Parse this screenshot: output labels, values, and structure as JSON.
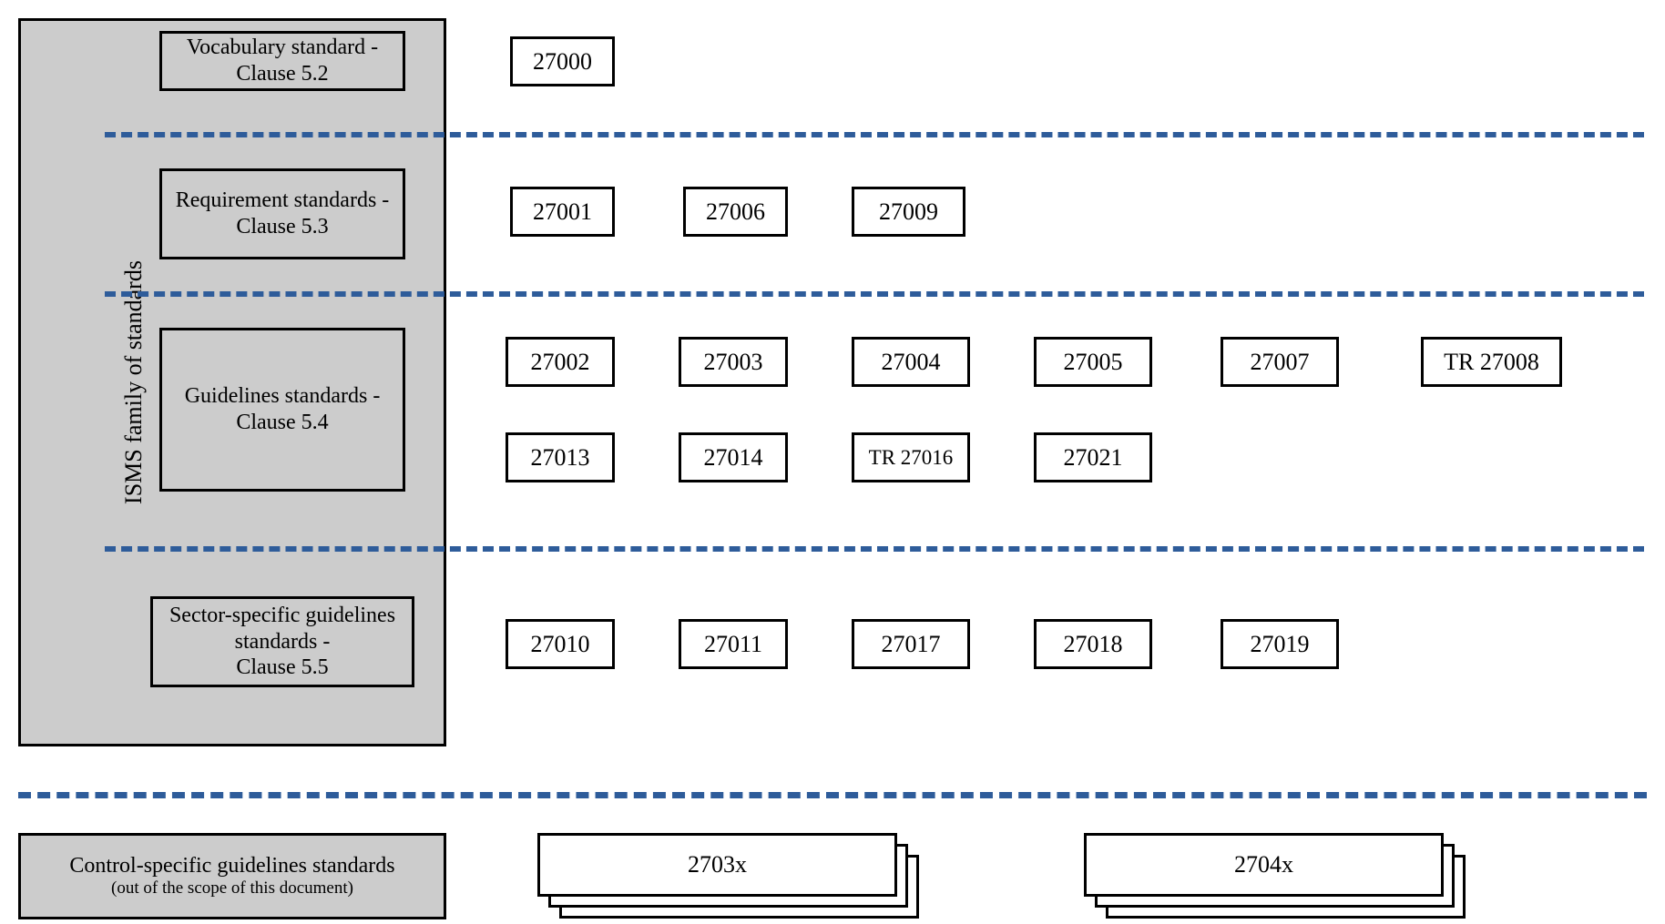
{
  "type": "diagram",
  "background_color": "#ffffff",
  "sidebar": {
    "bg": "#cccccc",
    "border": "#000000",
    "vlabel": "ISMS family of standards"
  },
  "divider_color": "#2e5c9a",
  "categories": [
    {
      "label": "Vocabulary standard -\nClause 5.2"
    },
    {
      "label": "Requirement standards -\nClause 5.3"
    },
    {
      "label": "Guidelines standards -\nClause 5.4"
    },
    {
      "label": "Sector-specific guidelines standards -\nClause 5.5"
    }
  ],
  "row1": [
    "27000"
  ],
  "row2": [
    "27001",
    "27006",
    "27009"
  ],
  "row3a": [
    "27002",
    "27003",
    "27004",
    "27005",
    "27007",
    "TR 27008"
  ],
  "row3b": [
    "27013",
    "27014",
    "TR 27016",
    "27021"
  ],
  "row4": [
    "27010",
    "27011",
    "27017",
    "27018",
    "27019"
  ],
  "bottom": {
    "label1": "Control-specific guidelines standards",
    "label2": "(out of the scope of this document)"
  },
  "stacks": [
    "2703x",
    "2704x"
  ]
}
